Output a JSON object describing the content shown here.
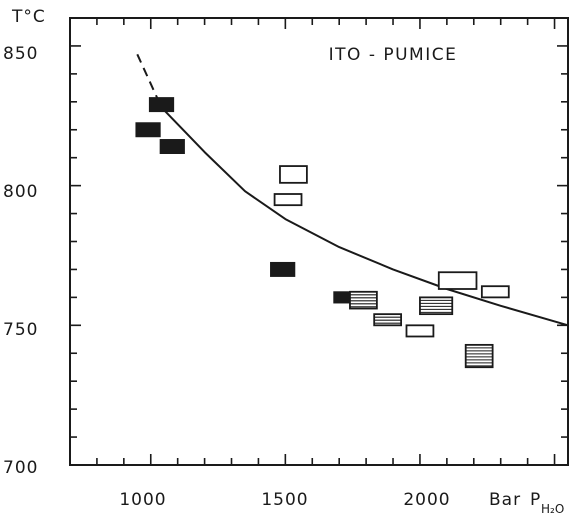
{
  "chart_data": {
    "type": "scatter",
    "title": "ITO - PUMICE",
    "ylabel": "T°C",
    "xlabel": "Bar",
    "xlabel_quantity": "P",
    "xlabel_subscript": "H₂O",
    "xlim": [
      700,
      2550
    ],
    "ylim": [
      700,
      860
    ],
    "xticks": [
      "1000",
      "1500",
      "2000"
    ],
    "yticks": [
      "700",
      "750",
      "800",
      "850"
    ],
    "grid": false,
    "legend": "none",
    "curve": {
      "description": "continuous trend, dashed at high-T end",
      "dashed_points": [
        [
          950,
          847
        ],
        [
          1040,
          828
        ]
      ],
      "solid_points": [
        [
          1040,
          828
        ],
        [
          1200,
          812
        ],
        [
          1350,
          798
        ],
        [
          1500,
          788
        ],
        [
          1700,
          778
        ],
        [
          1900,
          770
        ],
        [
          2100,
          763
        ],
        [
          2300,
          757
        ],
        [
          2550,
          750
        ]
      ]
    },
    "series": [
      {
        "style": "filled",
        "points": [
          {
            "x": 990,
            "y": 820,
            "w": 90,
            "h": 5
          },
          {
            "x": 1040,
            "y": 829,
            "w": 90,
            "h": 5
          },
          {
            "x": 1080,
            "y": 814,
            "w": 90,
            "h": 5
          },
          {
            "x": 1490,
            "y": 770,
            "w": 90,
            "h": 5
          },
          {
            "x": 1720,
            "y": 760,
            "w": 80,
            "h": 4
          }
        ]
      },
      {
        "style": "open",
        "points": [
          {
            "x": 1510,
            "y": 795,
            "w": 100,
            "h": 4
          },
          {
            "x": 1530,
            "y": 804,
            "w": 100,
            "h": 6
          },
          {
            "x": 2000,
            "y": 748,
            "w": 100,
            "h": 4
          },
          {
            "x": 2140,
            "y": 766,
            "w": 140,
            "h": 6
          },
          {
            "x": 2280,
            "y": 762,
            "w": 100,
            "h": 4
          }
        ]
      },
      {
        "style": "hatched",
        "points": [
          {
            "x": 1790,
            "y": 759,
            "w": 100,
            "h": 6
          },
          {
            "x": 1880,
            "y": 752,
            "w": 100,
            "h": 4
          },
          {
            "x": 2060,
            "y": 757,
            "w": 120,
            "h": 6
          },
          {
            "x": 2220,
            "y": 739,
            "w": 100,
            "h": 8
          }
        ]
      }
    ]
  }
}
